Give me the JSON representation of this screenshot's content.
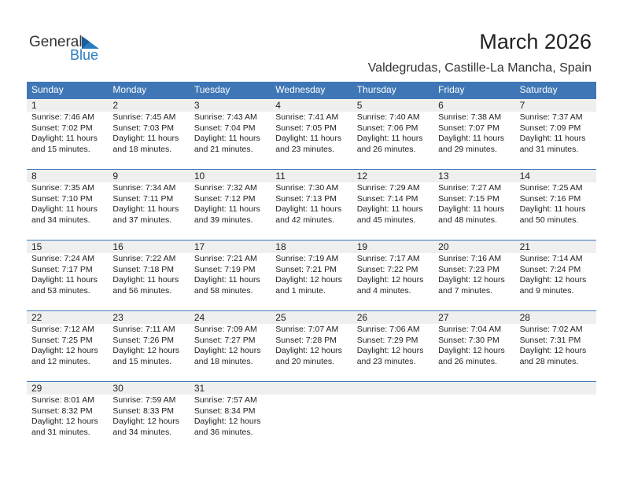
{
  "header": {
    "logo": [
      "General",
      "Blue"
    ],
    "title": "March 2026",
    "location": "Valdegrudas, Castille-La Mancha, Spain"
  },
  "weekdays": [
    "Sunday",
    "Monday",
    "Tuesday",
    "Wednesday",
    "Thursday",
    "Friday",
    "Saturday"
  ],
  "weeks": [
    [
      {
        "day": 1,
        "lines": [
          "Sunrise: 7:46 AM",
          "Sunset: 7:02 PM",
          "Daylight: 11 hours",
          "and 15 minutes."
        ]
      },
      {
        "day": 2,
        "lines": [
          "Sunrise: 7:45 AM",
          "Sunset: 7:03 PM",
          "Daylight: 11 hours",
          "and 18 minutes."
        ]
      },
      {
        "day": 3,
        "lines": [
          "Sunrise: 7:43 AM",
          "Sunset: 7:04 PM",
          "Daylight: 11 hours",
          "and 21 minutes."
        ]
      },
      {
        "day": 4,
        "lines": [
          "Sunrise: 7:41 AM",
          "Sunset: 7:05 PM",
          "Daylight: 11 hours",
          "and 23 minutes."
        ]
      },
      {
        "day": 5,
        "lines": [
          "Sunrise: 7:40 AM",
          "Sunset: 7:06 PM",
          "Daylight: 11 hours",
          "and 26 minutes."
        ]
      },
      {
        "day": 6,
        "lines": [
          "Sunrise: 7:38 AM",
          "Sunset: 7:07 PM",
          "Daylight: 11 hours",
          "and 29 minutes."
        ]
      },
      {
        "day": 7,
        "lines": [
          "Sunrise: 7:37 AM",
          "Sunset: 7:09 PM",
          "Daylight: 11 hours",
          "and 31 minutes."
        ]
      }
    ],
    [
      {
        "day": 8,
        "lines": [
          "Sunrise: 7:35 AM",
          "Sunset: 7:10 PM",
          "Daylight: 11 hours",
          "and 34 minutes."
        ]
      },
      {
        "day": 9,
        "lines": [
          "Sunrise: 7:34 AM",
          "Sunset: 7:11 PM",
          "Daylight: 11 hours",
          "and 37 minutes."
        ]
      },
      {
        "day": 10,
        "lines": [
          "Sunrise: 7:32 AM",
          "Sunset: 7:12 PM",
          "Daylight: 11 hours",
          "and 39 minutes."
        ]
      },
      {
        "day": 11,
        "lines": [
          "Sunrise: 7:30 AM",
          "Sunset: 7:13 PM",
          "Daylight: 11 hours",
          "and 42 minutes."
        ]
      },
      {
        "day": 12,
        "lines": [
          "Sunrise: 7:29 AM",
          "Sunset: 7:14 PM",
          "Daylight: 11 hours",
          "and 45 minutes."
        ]
      },
      {
        "day": 13,
        "lines": [
          "Sunrise: 7:27 AM",
          "Sunset: 7:15 PM",
          "Daylight: 11 hours",
          "and 48 minutes."
        ]
      },
      {
        "day": 14,
        "lines": [
          "Sunrise: 7:25 AM",
          "Sunset: 7:16 PM",
          "Daylight: 11 hours",
          "and 50 minutes."
        ]
      }
    ],
    [
      {
        "day": 15,
        "lines": [
          "Sunrise: 7:24 AM",
          "Sunset: 7:17 PM",
          "Daylight: 11 hours",
          "and 53 minutes."
        ]
      },
      {
        "day": 16,
        "lines": [
          "Sunrise: 7:22 AM",
          "Sunset: 7:18 PM",
          "Daylight: 11 hours",
          "and 56 minutes."
        ]
      },
      {
        "day": 17,
        "lines": [
          "Sunrise: 7:21 AM",
          "Sunset: 7:19 PM",
          "Daylight: 11 hours",
          "and 58 minutes."
        ]
      },
      {
        "day": 18,
        "lines": [
          "Sunrise: 7:19 AM",
          "Sunset: 7:21 PM",
          "Daylight: 12 hours",
          "and 1 minute."
        ]
      },
      {
        "day": 19,
        "lines": [
          "Sunrise: 7:17 AM",
          "Sunset: 7:22 PM",
          "Daylight: 12 hours",
          "and 4 minutes."
        ]
      },
      {
        "day": 20,
        "lines": [
          "Sunrise: 7:16 AM",
          "Sunset: 7:23 PM",
          "Daylight: 12 hours",
          "and 7 minutes."
        ]
      },
      {
        "day": 21,
        "lines": [
          "Sunrise: 7:14 AM",
          "Sunset: 7:24 PM",
          "Daylight: 12 hours",
          "and 9 minutes."
        ]
      }
    ],
    [
      {
        "day": 22,
        "lines": [
          "Sunrise: 7:12 AM",
          "Sunset: 7:25 PM",
          "Daylight: 12 hours",
          "and 12 minutes."
        ]
      },
      {
        "day": 23,
        "lines": [
          "Sunrise: 7:11 AM",
          "Sunset: 7:26 PM",
          "Daylight: 12 hours",
          "and 15 minutes."
        ]
      },
      {
        "day": 24,
        "lines": [
          "Sunrise: 7:09 AM",
          "Sunset: 7:27 PM",
          "Daylight: 12 hours",
          "and 18 minutes."
        ]
      },
      {
        "day": 25,
        "lines": [
          "Sunrise: 7:07 AM",
          "Sunset: 7:28 PM",
          "Daylight: 12 hours",
          "and 20 minutes."
        ]
      },
      {
        "day": 26,
        "lines": [
          "Sunrise: 7:06 AM",
          "Sunset: 7:29 PM",
          "Daylight: 12 hours",
          "and 23 minutes."
        ]
      },
      {
        "day": 27,
        "lines": [
          "Sunrise: 7:04 AM",
          "Sunset: 7:30 PM",
          "Daylight: 12 hours",
          "and 26 minutes."
        ]
      },
      {
        "day": 28,
        "lines": [
          "Sunrise: 7:02 AM",
          "Sunset: 7:31 PM",
          "Daylight: 12 hours",
          "and 28 minutes."
        ]
      }
    ],
    [
      {
        "day": 29,
        "lines": [
          "Sunrise: 8:01 AM",
          "Sunset: 8:32 PM",
          "Daylight: 12 hours",
          "and 31 minutes."
        ]
      },
      {
        "day": 30,
        "lines": [
          "Sunrise: 7:59 AM",
          "Sunset: 8:33 PM",
          "Daylight: 12 hours",
          "and 34 minutes."
        ]
      },
      {
        "day": 31,
        "lines": [
          "Sunrise: 7:57 AM",
          "Sunset: 8:34 PM",
          "Daylight: 12 hours",
          "and 36 minutes."
        ]
      }
    ]
  ]
}
